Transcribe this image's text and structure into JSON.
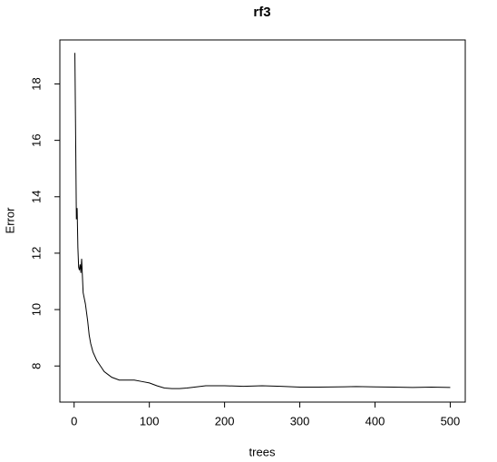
{
  "chart_data": {
    "type": "line",
    "title": "rf3",
    "x_label": "trees",
    "y_label": "Error",
    "x": [
      1,
      2,
      3,
      4,
      5,
      6,
      7,
      8,
      9,
      10,
      12,
      15,
      18,
      20,
      22,
      25,
      30,
      35,
      40,
      45,
      50,
      60,
      70,
      80,
      90,
      100,
      110,
      120,
      130,
      140,
      150,
      160,
      175,
      200,
      225,
      250,
      275,
      300,
      325,
      350,
      375,
      400,
      425,
      450,
      475,
      500
    ],
    "series": [
      {
        "name": "rf3",
        "color": "#000000",
        "values": [
          19.1,
          16.2,
          13.2,
          13.6,
          12.2,
          11.5,
          11.4,
          11.6,
          11.3,
          11.8,
          10.6,
          10.2,
          9.6,
          9.1,
          8.8,
          8.5,
          8.2,
          8.0,
          7.8,
          7.7,
          7.6,
          7.5,
          7.5,
          7.5,
          7.45,
          7.4,
          7.3,
          7.22,
          7.2,
          7.2,
          7.22,
          7.25,
          7.3,
          7.3,
          7.28,
          7.3,
          7.28,
          7.25,
          7.25,
          7.26,
          7.27,
          7.26,
          7.25,
          7.24,
          7.25,
          7.24
        ]
      }
    ],
    "xlim": [
      -18.96,
      519.96
    ],
    "xticks": [
      0,
      100,
      200,
      300,
      400,
      500
    ],
    "ylim": [
      6.72,
      19.56
    ],
    "yticks": [
      8,
      10,
      12,
      14,
      16,
      18
    ]
  }
}
